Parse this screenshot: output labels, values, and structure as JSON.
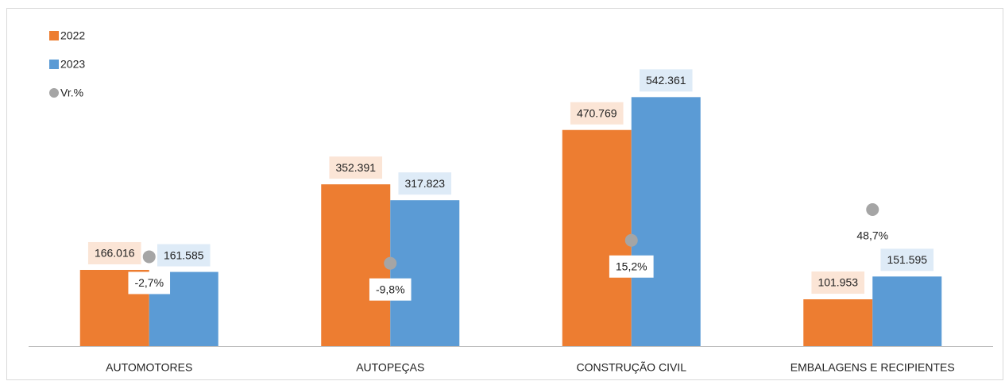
{
  "chart_data": {
    "type": "bar",
    "categories": [
      "AUTOMOTORES",
      "AUTOPEÇAS",
      "CONSTRUÇÃO CIVIL",
      "EMBALAGENS E RECIPIENTES"
    ],
    "series": [
      {
        "name": "2022",
        "color": "#ed7d31",
        "label_bg": "#fbe5d6",
        "values": [
          166016,
          352391,
          470769,
          101953
        ],
        "value_labels": [
          "166.016",
          "352.391",
          "470.769",
          "101.953"
        ]
      },
      {
        "name": "2023",
        "color": "#5b9bd5",
        "label_bg": "#deebf7",
        "values": [
          161585,
          317823,
          542361,
          151595
        ],
        "value_labels": [
          "161.585",
          "317.823",
          "542.361",
          "151.595"
        ]
      },
      {
        "name": "Vr.%",
        "color": "#a5a5a5",
        "axis": "y2",
        "type": "scatter",
        "values": [
          -2.7,
          -9.8,
          15.2,
          48.7
        ],
        "value_labels": [
          "-2,7%",
          "-9,8%",
          "15,2%",
          "48,7%"
        ]
      }
    ],
    "ylim": [
      0,
      600000
    ],
    "y2lim": [
      -100,
      200
    ]
  }
}
